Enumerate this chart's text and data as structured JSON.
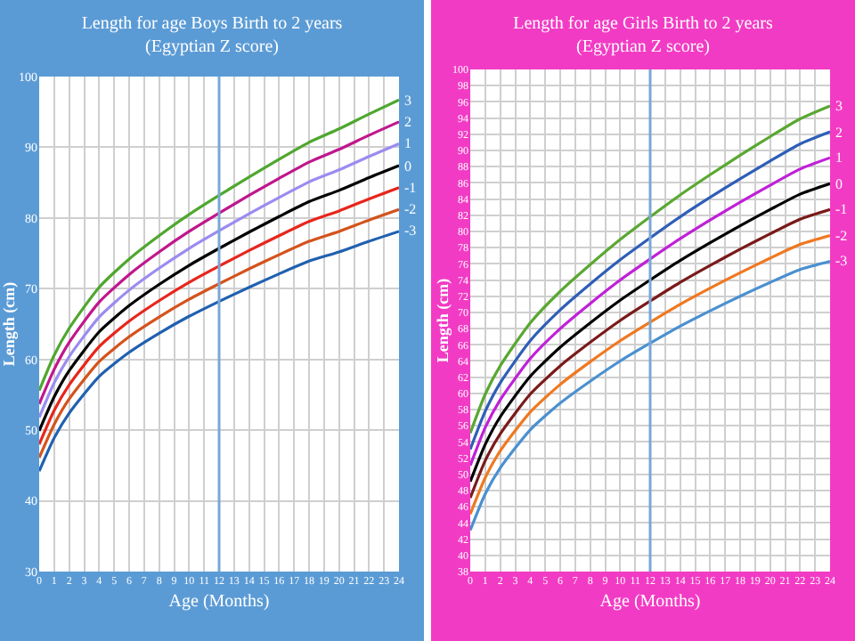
{
  "chart_data": [
    {
      "type": "line",
      "title": "Length for age Boys Birth to 2 years",
      "subtitle": "(Egyptian Z score)",
      "xlabel": "Age (Months)",
      "ylabel": "Length (cm)",
      "x": [
        0,
        1,
        2,
        4,
        6,
        8,
        10,
        12,
        14,
        16,
        18,
        20,
        22,
        24
      ],
      "xlim": [
        0,
        24
      ],
      "xticks": [
        0,
        1,
        2,
        3,
        4,
        5,
        6,
        7,
        8,
        9,
        10,
        11,
        12,
        13,
        14,
        15,
        16,
        17,
        18,
        19,
        20,
        21,
        22,
        23,
        24
      ],
      "ylim": [
        30,
        100
      ],
      "yticks": [
        30,
        40,
        50,
        60,
        70,
        80,
        90,
        100
      ],
      "grid": true,
      "legend": false,
      "marker": "none",
      "ref_lines": [
        {
          "axis": "x",
          "value": 12,
          "color": "#7aa7d6"
        }
      ],
      "series": [
        {
          "name": "3",
          "color": "#4ea72e",
          "values": [
            55.6,
            60.6,
            64.4,
            70.2,
            74.2,
            77.5,
            80.5,
            83.2,
            85.8,
            88.3,
            90.7,
            92.6,
            94.7,
            96.7
          ]
        },
        {
          "name": "2",
          "color": "#c0168c",
          "values": [
            53.7,
            58.6,
            62.4,
            68.1,
            72.0,
            75.2,
            78.1,
            80.7,
            83.2,
            85.6,
            87.9,
            89.7,
            91.7,
            93.6
          ]
        },
        {
          "name": "1",
          "color": "#9a8cf0",
          "values": [
            51.8,
            56.7,
            60.4,
            66.0,
            69.8,
            72.9,
            75.7,
            78.2,
            80.6,
            82.9,
            85.1,
            86.8,
            88.7,
            90.5
          ]
        },
        {
          "name": "0",
          "color": "#000000",
          "values": [
            49.9,
            54.7,
            58.4,
            63.9,
            67.6,
            70.6,
            73.3,
            75.7,
            78.0,
            80.2,
            82.3,
            83.9,
            85.7,
            87.4
          ]
        },
        {
          "name": "-1",
          "color": "#e8251c",
          "values": [
            48.0,
            52.8,
            56.4,
            61.8,
            65.4,
            68.3,
            70.9,
            73.2,
            75.4,
            77.5,
            79.5,
            81.0,
            82.7,
            84.3
          ]
        },
        {
          "name": "-2",
          "color": "#d4531c",
          "values": [
            46.1,
            50.8,
            54.4,
            59.7,
            63.2,
            66.0,
            68.5,
            70.7,
            72.8,
            74.8,
            76.7,
            78.1,
            79.7,
            81.2
          ]
        },
        {
          "name": "-3",
          "color": "#2060b0",
          "values": [
            44.2,
            48.9,
            52.4,
            57.6,
            61.0,
            63.7,
            66.1,
            68.2,
            70.2,
            72.1,
            73.9,
            75.2,
            76.7,
            78.1
          ]
        }
      ]
    },
    {
      "type": "line",
      "title": "Length for age Girls Birth to 2 years",
      "subtitle": "(Egyptian Z score)",
      "xlabel": "Age (Months)",
      "ylabel": "Length (cm)",
      "x": [
        0,
        1,
        2,
        4,
        6,
        8,
        10,
        12,
        14,
        16,
        18,
        20,
        22,
        24
      ],
      "xlim": [
        0,
        24
      ],
      "xticks": [
        0,
        1,
        2,
        3,
        4,
        5,
        6,
        7,
        8,
        9,
        10,
        11,
        12,
        13,
        14,
        15,
        16,
        17,
        18,
        19,
        20,
        21,
        22,
        23,
        24
      ],
      "ylim": [
        38,
        100
      ],
      "yticks": [
        38,
        40,
        42,
        44,
        46,
        48,
        50,
        52,
        54,
        56,
        58,
        60,
        62,
        64,
        66,
        68,
        70,
        72,
        74,
        76,
        78,
        80,
        82,
        84,
        86,
        88,
        90,
        92,
        94,
        96,
        98,
        100
      ],
      "grid": true,
      "legend": false,
      "marker": "none",
      "ref_lines": [
        {
          "axis": "x",
          "value": 12,
          "color": "#7aa7d6"
        }
      ],
      "series": [
        {
          "name": "3",
          "color": "#5aa832",
          "values": [
            55.1,
            59.9,
            63.4,
            68.7,
            72.6,
            75.9,
            79.0,
            81.8,
            84.5,
            87.0,
            89.4,
            91.7,
            93.9,
            95.5
          ]
        },
        {
          "name": "2",
          "color": "#2e5eb8",
          "values": [
            53.1,
            57.8,
            61.3,
            66.5,
            70.3,
            73.5,
            76.5,
            79.2,
            81.8,
            84.2,
            86.5,
            88.7,
            90.8,
            92.3
          ]
        },
        {
          "name": "1",
          "color": "#c020d8",
          "values": [
            51.1,
            55.8,
            59.2,
            64.3,
            68.0,
            71.1,
            74.0,
            76.6,
            79.1,
            81.4,
            83.6,
            85.7,
            87.7,
            89.1
          ]
        },
        {
          "name": "0",
          "color": "#000000",
          "values": [
            49.1,
            53.7,
            57.1,
            62.1,
            65.7,
            68.7,
            71.5,
            74.0,
            76.4,
            78.6,
            80.7,
            82.7,
            84.6,
            85.9
          ]
        },
        {
          "name": "-1",
          "color": "#7a1a1a",
          "values": [
            47.1,
            51.7,
            55.0,
            59.9,
            63.4,
            66.3,
            69.0,
            71.4,
            73.7,
            75.8,
            77.8,
            79.7,
            81.5,
            82.7
          ]
        },
        {
          "name": "-2",
          "color": "#f07820",
          "values": [
            45.1,
            49.6,
            52.9,
            57.7,
            61.1,
            63.9,
            66.5,
            68.8,
            71.0,
            73.0,
            74.9,
            76.7,
            78.4,
            79.5
          ]
        },
        {
          "name": "-3",
          "color": "#4a90d0",
          "values": [
            43.1,
            47.6,
            50.8,
            55.5,
            58.8,
            61.5,
            64.0,
            66.2,
            68.3,
            70.2,
            72.0,
            73.7,
            75.3,
            76.3
          ]
        }
      ]
    }
  ]
}
